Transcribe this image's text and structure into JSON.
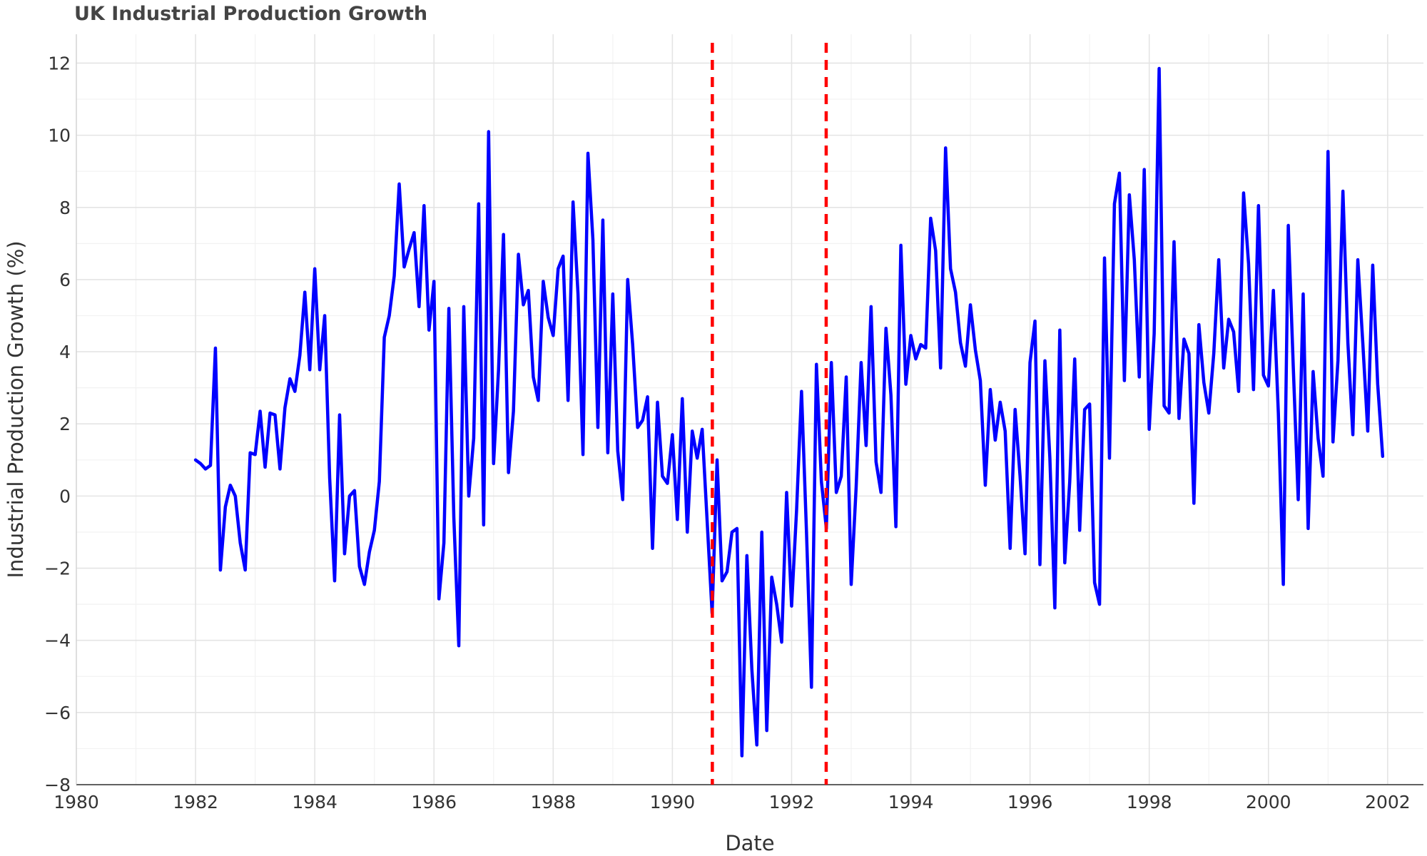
{
  "chart_data": {
    "type": "line",
    "title": "UK Industrial Production Growth",
    "xlabel": "Date",
    "ylabel": "Industrial Production Growth (%)",
    "xlim": [
      1980,
      2002.6
    ],
    "ylim": [
      -8,
      12.8
    ],
    "x_ticks": [
      "1980",
      "1982",
      "1984",
      "1986",
      "1988",
      "1990",
      "1992",
      "1994",
      "1996",
      "1998",
      "2000",
      "2002"
    ],
    "y_ticks": [
      "-8",
      "-6",
      "-4",
      "-2",
      "0",
      "2",
      "4",
      "6",
      "8",
      "10",
      "12"
    ],
    "grid": true,
    "x_start": 1982.0,
    "x_step": 0.08333,
    "series": [
      {
        "color": "#0000ff",
        "values": [
          1.0,
          0.9,
          0.75,
          0.85,
          4.1,
          -2.05,
          -0.3,
          0.3,
          0.0,
          -1.3,
          -2.05,
          1.2,
          1.15,
          2.35,
          0.8,
          2.3,
          2.25,
          0.75,
          2.45,
          3.25,
          2.9,
          3.9,
          5.65,
          3.5,
          6.3,
          3.5,
          5.0,
          0.5,
          -2.35,
          2.25,
          -1.6,
          0.0,
          0.15,
          -1.95,
          -2.45,
          -1.55,
          -0.95,
          0.4,
          4.4,
          5.0,
          6.1,
          8.65,
          6.35,
          6.85,
          7.3,
          5.25,
          8.05,
          4.6,
          5.95,
          -2.85,
          -1.3,
          5.2,
          -0.6,
          -4.15,
          5.25,
          0.0,
          1.6,
          8.1,
          -0.8,
          10.1,
          0.9,
          3.5,
          7.25,
          0.65,
          2.35,
          6.7,
          5.3,
          5.7,
          3.3,
          2.65,
          5.95,
          4.95,
          4.45,
          6.3,
          6.65,
          2.65,
          8.15,
          5.6,
          1.15,
          9.5,
          7.1,
          1.9,
          7.65,
          1.2,
          5.6,
          1.25,
          -0.1,
          6.0,
          4.2,
          1.9,
          2.1,
          2.75,
          -1.45,
          2.6,
          0.55,
          0.35,
          1.7,
          -0.65,
          2.7,
          -1.0,
          1.8,
          1.05,
          1.85,
          -0.7,
          -3.25,
          1.0,
          -2.35,
          -2.1,
          -1.0,
          -0.9,
          -7.2,
          -1.65,
          -4.8,
          -6.9,
          -1.0,
          -6.5,
          -2.25,
          -3.0,
          -4.05,
          0.1,
          -3.05,
          -0.4,
          2.9,
          -1.0,
          -5.3,
          3.65,
          0.4,
          -0.9,
          3.7,
          0.1,
          0.55,
          3.3,
          -2.45,
          0.25,
          3.7,
          1.4,
          5.25,
          0.95,
          0.1,
          4.65,
          2.8,
          -0.85,
          6.95,
          3.1,
          4.45,
          3.8,
          4.2,
          4.1,
          7.7,
          6.8,
          3.55,
          9.65,
          6.3,
          5.65,
          4.25,
          3.6,
          5.3,
          4.05,
          3.2,
          0.3,
          2.95,
          1.55,
          2.6,
          1.8,
          -1.45,
          2.4,
          0.55,
          -1.6,
          3.7,
          4.85,
          -1.9,
          3.75,
          1.05,
          -3.1,
          4.6,
          -1.85,
          0.4,
          3.8,
          -0.95,
          2.4,
          2.55,
          -2.4,
          -3.0,
          6.6,
          1.05,
          8.1,
          8.95,
          3.2,
          8.35,
          6.55,
          3.3,
          9.05,
          1.85,
          4.5,
          11.85,
          2.5,
          2.3,
          7.05,
          2.15,
          4.35,
          3.95,
          -0.2,
          4.75,
          3.15,
          2.3,
          3.95,
          6.55,
          3.55,
          4.9,
          4.55,
          2.9,
          8.4,
          6.45,
          2.95,
          8.05,
          3.35,
          3.05,
          5.7,
          2.3,
          -2.45,
          7.5,
          3.6,
          -0.1,
          5.6,
          -0.9,
          3.45,
          1.6,
          0.55,
          9.55,
          1.5,
          3.75,
          8.45,
          4.25,
          1.7,
          6.55,
          4.25,
          1.8,
          6.4,
          3.1,
          1.1
        ]
      }
    ],
    "reference_lines": [
      {
        "x": 1990.67,
        "color": "#ff0000",
        "style": "dashed"
      },
      {
        "x": 1992.58,
        "color": "#ff0000",
        "style": "dashed"
      }
    ]
  }
}
